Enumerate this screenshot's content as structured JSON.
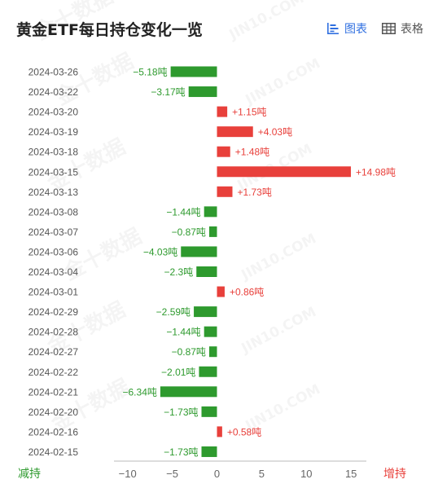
{
  "header": {
    "title": "黄金ETF每日持仓变化一览",
    "tabs": [
      {
        "label": "图表",
        "icon": "bar-chart-icon",
        "active": true
      },
      {
        "label": "表格",
        "icon": "table-icon",
        "active": false
      }
    ]
  },
  "colors": {
    "increase": "#e8403b",
    "decrease": "#2e9a2e",
    "accent": "#2f6fe0"
  },
  "chart_data": {
    "type": "bar",
    "orientation": "horizontal",
    "categories": [
      "2024-03-26",
      "2024-03-22",
      "2024-03-20",
      "2024-03-19",
      "2024-03-18",
      "2024-03-15",
      "2024-03-13",
      "2024-03-08",
      "2024-03-07",
      "2024-03-06",
      "2024-03-04",
      "2024-03-01",
      "2024-02-29",
      "2024-02-28",
      "2024-02-27",
      "2024-02-22",
      "2024-02-21",
      "2024-02-20",
      "2024-02-16",
      "2024-02-15"
    ],
    "values": [
      -5.18,
      -3.17,
      1.15,
      4.03,
      1.48,
      14.98,
      1.73,
      -1.44,
      -0.87,
      -4.03,
      -2.3,
      0.86,
      -2.59,
      -1.44,
      -0.87,
      -2.01,
      -6.34,
      -1.73,
      0.58,
      -1.73
    ],
    "data_labels": [
      "−5.18吨",
      "−3.17吨",
      "+1.15吨",
      "+4.03吨",
      "+1.48吨",
      "+14.98吨",
      "+1.73吨",
      "−1.44吨",
      "−0.87吨",
      "−4.03吨",
      "−2.3吨",
      "+0.86吨",
      "−2.59吨",
      "−1.44吨",
      "−0.87吨",
      "−2.01吨",
      "−6.34吨",
      "−1.73吨",
      "+0.58吨",
      "−1.73吨"
    ],
    "xticks": [
      -10,
      -5,
      0,
      5,
      10,
      15
    ],
    "xtick_labels": [
      "−10",
      "−5",
      "0",
      "5",
      "10",
      "15"
    ],
    "xlim": [
      -12.5,
      17
    ],
    "left_label": "减持",
    "right_label": "增持",
    "watermark": "金十数据 JIN10.COM"
  }
}
